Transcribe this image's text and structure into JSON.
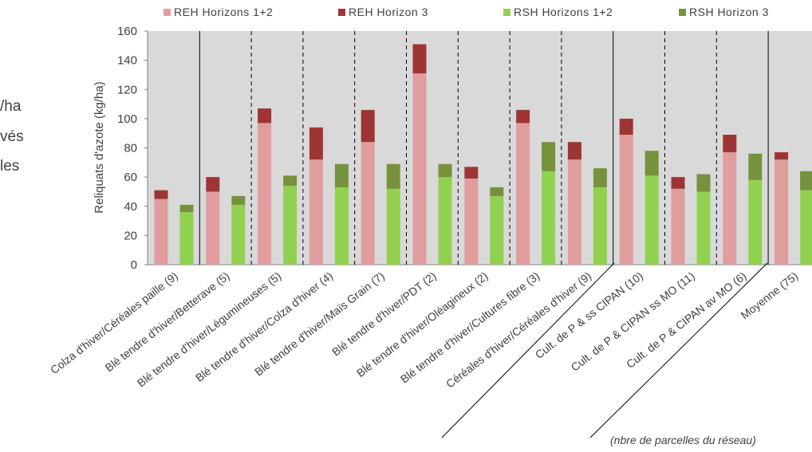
{
  "side_text": [
    "/ha",
    "vés",
    "les"
  ],
  "chart_data": {
    "type": "bar",
    "stacked": true,
    "ylabel": "Reliquats d'azote (kg/ha)",
    "ylim": [
      0,
      160
    ],
    "yticks": [
      0,
      20,
      40,
      60,
      80,
      100,
      120,
      140,
      160
    ],
    "note": "(nbre de parcelles du réseau)",
    "categories": [
      "Colza d'hiver/Céréales paille (9)",
      "Blé tendre d'hiver/Betterave (5)",
      "Blé tendre d'hiver/Légumineuses (5)",
      "Blé tendre d'hiver/Colza d'hiver (4)",
      "Blé tendre d'hiver/Maïs Grain (7)",
      "Blé tendre d'hiver/PDT (2)",
      "Blé tendre d'hiver/Oléagineux (2)",
      "Blé tendre d'hiver/Cultures fibre (3)",
      "Céréales d'hiver/Céréales d'hiver (9)",
      "Cult. de P & ss CIPAN (10)",
      "Cult. de P & CIPAN ss MO (11)",
      "Cult. de P & CIPAN av MO (6)",
      "Moyenne (75)"
    ],
    "series": [
      {
        "name": "REH Horizons 1+2",
        "color": "#e09d9d",
        "group": "REH",
        "stack": "base",
        "values": [
          45,
          50,
          97,
          72,
          84,
          131,
          59,
          97,
          72,
          89,
          52,
          77,
          72
        ]
      },
      {
        "name": "REH Horizon 3",
        "color": "#9e3535",
        "group": "REH",
        "stack": "top",
        "values": [
          6,
          10,
          10,
          22,
          22,
          20,
          8,
          9,
          12,
          11,
          8,
          12,
          5
        ]
      },
      {
        "name": "RSH Horizons 1+2",
        "color": "#92d050",
        "group": "RSH",
        "stack": "base",
        "values": [
          36,
          41,
          54,
          53,
          52,
          60,
          47,
          64,
          53,
          61,
          50,
          58,
          51
        ]
      },
      {
        "name": "RSH Horizon 3",
        "color": "#76923c",
        "group": "RSH",
        "stack": "top",
        "values": [
          5,
          6,
          7,
          16,
          17,
          9,
          6,
          20,
          13,
          17,
          12,
          18,
          13
        ]
      }
    ],
    "separators": {
      "solid_after": [
        0,
        8,
        11
      ],
      "dashed_after": [
        1,
        2,
        3,
        4,
        5,
        6,
        7,
        9,
        10
      ]
    },
    "grid": false,
    "legend_position": "top"
  }
}
